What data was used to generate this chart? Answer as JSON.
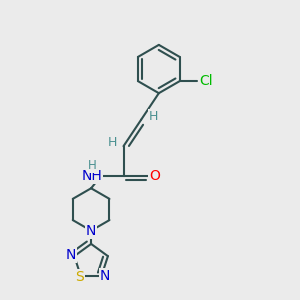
{
  "bg_color": "#ebebeb",
  "bond_color": "#2f4f4f",
  "bond_width": 1.5,
  "atom_colors": {
    "C": "#2f4f4f",
    "N": "#0000cc",
    "O": "#ff0000",
    "S": "#ccaa00",
    "Cl": "#00bb00",
    "H": "#4a9090"
  },
  "font_size": 9.5
}
